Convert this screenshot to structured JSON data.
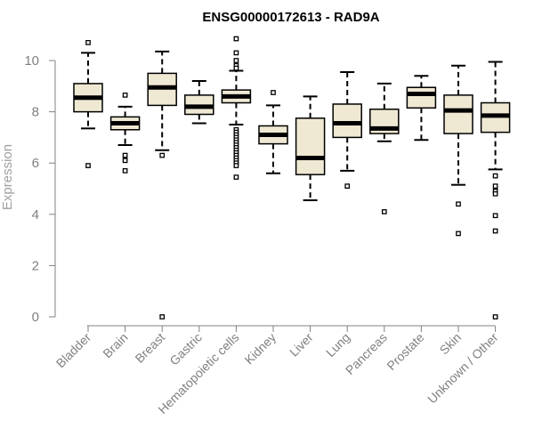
{
  "chart_data": {
    "type": "box",
    "title": "ENSG00000172613 - RAD9A",
    "xlabel": "",
    "ylabel": "Expression",
    "ylim": [
      0,
      11
    ],
    "yticks": [
      0,
      2,
      4,
      6,
      8,
      10
    ],
    "categories": [
      "Bladder",
      "Brain",
      "Breast",
      "Gastric",
      "Hematopoietic cells",
      "Kidney",
      "Liver",
      "Lung",
      "Pancreas",
      "Prostate",
      "Skin",
      "Unknown / Other"
    ],
    "boxes": [
      {
        "whisker_low": 7.35,
        "q1": 8.0,
        "median": 8.55,
        "q3": 9.1,
        "whisker_high": 10.3,
        "outliers": [
          10.7,
          5.9
        ]
      },
      {
        "whisker_low": 6.7,
        "q1": 7.3,
        "median": 7.55,
        "q3": 7.8,
        "whisker_high": 8.2,
        "outliers": [
          8.65,
          6.3,
          6.1,
          5.7
        ]
      },
      {
        "whisker_low": 6.5,
        "q1": 8.25,
        "median": 8.95,
        "q3": 9.5,
        "whisker_high": 10.35,
        "outliers": [
          6.3,
          0.0
        ]
      },
      {
        "whisker_low": 7.55,
        "q1": 7.9,
        "median": 8.2,
        "q3": 8.65,
        "whisker_high": 9.2,
        "outliers": []
      },
      {
        "whisker_low": 7.5,
        "q1": 8.35,
        "median": 8.6,
        "q3": 8.85,
        "whisker_high": 9.6,
        "outliers": [
          10.85,
          10.3,
          10.0,
          9.8,
          9.7,
          7.3,
          7.2,
          7.1,
          7.0,
          6.9,
          6.8,
          6.7,
          6.6,
          6.5,
          6.4,
          6.3,
          6.2,
          6.1,
          6.0,
          5.9,
          5.45
        ]
      },
      {
        "whisker_low": 5.6,
        "q1": 6.75,
        "median": 7.1,
        "q3": 7.45,
        "whisker_high": 8.25,
        "outliers": [
          8.75
        ]
      },
      {
        "whisker_low": 4.55,
        "q1": 5.55,
        "median": 6.2,
        "q3": 7.75,
        "whisker_high": 8.6,
        "outliers": []
      },
      {
        "whisker_low": 5.7,
        "q1": 7.0,
        "median": 7.55,
        "q3": 8.3,
        "whisker_high": 9.55,
        "outliers": [
          5.1
        ]
      },
      {
        "whisker_low": 6.85,
        "q1": 7.15,
        "median": 7.35,
        "q3": 8.1,
        "whisker_high": 9.1,
        "outliers": [
          4.1
        ]
      },
      {
        "whisker_low": 6.9,
        "q1": 8.15,
        "median": 8.7,
        "q3": 8.95,
        "whisker_high": 9.4,
        "outliers": []
      },
      {
        "whisker_low": 5.15,
        "q1": 7.15,
        "median": 8.05,
        "q3": 8.65,
        "whisker_high": 9.8,
        "outliers": [
          4.4,
          3.25
        ]
      },
      {
        "whisker_low": 5.75,
        "q1": 7.2,
        "median": 7.85,
        "q3": 8.35,
        "whisker_high": 9.95,
        "outliers": [
          5.5,
          5.1,
          4.9,
          4.8,
          3.95,
          3.35,
          0.0
        ]
      }
    ],
    "box_fill": "#efe9d3",
    "box_stroke": "#000000",
    "axis_color": "#808080",
    "grid": false,
    "legend": "none"
  }
}
